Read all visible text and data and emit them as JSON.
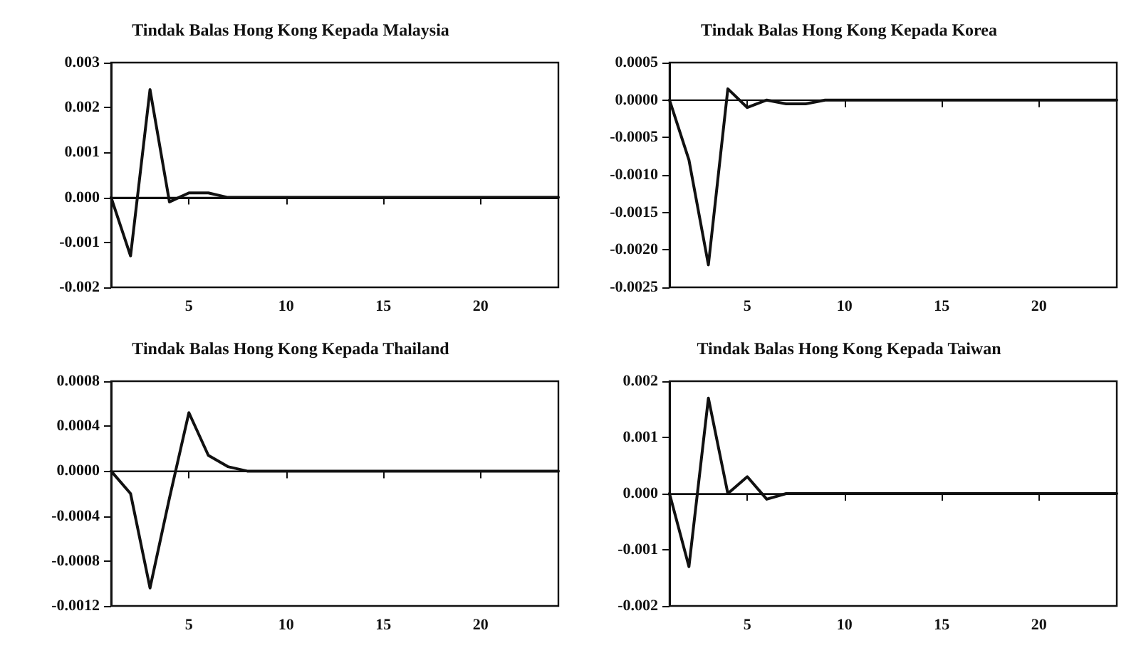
{
  "chart_data": [
    {
      "type": "line",
      "title": "Tindak Balas Hong Kong Kepada Malaysia",
      "x": [
        1,
        2,
        3,
        4,
        5,
        6,
        7,
        8,
        9,
        10,
        11,
        12,
        13,
        14,
        15,
        16,
        17,
        18,
        19,
        20,
        21,
        22,
        23,
        24
      ],
      "series": [
        {
          "color": "#111111",
          "values": [
            0,
            -0.0013,
            0.0024,
            -0.0001,
            0.0001,
            0.0001,
            0,
            0,
            0,
            0,
            0,
            0,
            0,
            0,
            0,
            0,
            0,
            0,
            0,
            0,
            0,
            0,
            0,
            0
          ]
        }
      ],
      "xlim": [
        1,
        24
      ],
      "xticks": [
        5,
        10,
        15,
        20
      ],
      "ylim": [
        -0.002,
        0.003
      ],
      "yticks": [
        {
          "value": -0.002,
          "label": "-0.002"
        },
        {
          "value": -0.001,
          "label": "-0.001"
        },
        {
          "value": 0,
          "label": "0.000"
        },
        {
          "value": 0.001,
          "label": "0.001"
        },
        {
          "value": 0.002,
          "label": "0.002"
        },
        {
          "value": 0.003,
          "label": "0.003"
        }
      ],
      "ref_lines": [
        {
          "axis": "y",
          "value": 0,
          "color": "#111111"
        }
      ],
      "grid": false,
      "marker": "none",
      "line_style": "solid"
    },
    {
      "type": "line",
      "title": "Tindak Balas Hong Kong Kepada Korea",
      "x": [
        1,
        2,
        3,
        4,
        5,
        6,
        7,
        8,
        9,
        10,
        11,
        12,
        13,
        14,
        15,
        16,
        17,
        18,
        19,
        20,
        21,
        22,
        23,
        24
      ],
      "series": [
        {
          "color": "#111111",
          "values": [
            0,
            -0.0008,
            -0.0022,
            0.00015,
            -0.0001,
            0,
            -5e-05,
            -5e-05,
            0,
            0,
            0,
            0,
            0,
            0,
            0,
            0,
            0,
            0,
            0,
            0,
            0,
            0,
            0,
            0
          ]
        }
      ],
      "xlim": [
        1,
        24
      ],
      "xticks": [
        5,
        10,
        15,
        20
      ],
      "ylim": [
        -0.0025,
        0.0005
      ],
      "yticks": [
        {
          "value": -0.0025,
          "label": "-0.0025"
        },
        {
          "value": -0.002,
          "label": "-0.0020"
        },
        {
          "value": -0.0015,
          "label": "-0.0015"
        },
        {
          "value": -0.001,
          "label": "-0.0010"
        },
        {
          "value": -0.0005,
          "label": "-0.0005"
        },
        {
          "value": 0,
          "label": "0.0000"
        },
        {
          "value": 0.0005,
          "label": "0.0005"
        }
      ],
      "ref_lines": [
        {
          "axis": "y",
          "value": 0,
          "color": "#111111"
        }
      ],
      "grid": false,
      "marker": "none",
      "line_style": "solid"
    },
    {
      "type": "line",
      "title": "Tindak Balas Hong Kong Kepada Thailand",
      "x": [
        1,
        2,
        3,
        4,
        5,
        6,
        7,
        8,
        9,
        10,
        11,
        12,
        13,
        14,
        15,
        16,
        17,
        18,
        19,
        20,
        21,
        22,
        23,
        24
      ],
      "series": [
        {
          "color": "#111111",
          "values": [
            0,
            -0.0002,
            -0.00104,
            -0.00024,
            0.00052,
            0.00014,
            4e-05,
            0,
            0,
            0,
            0,
            0,
            0,
            0,
            0,
            0,
            0,
            0,
            0,
            0,
            0,
            0,
            0,
            0
          ]
        }
      ],
      "xlim": [
        1,
        24
      ],
      "xticks": [
        5,
        10,
        15,
        20
      ],
      "ylim": [
        -0.0012,
        0.0008
      ],
      "yticks": [
        {
          "value": -0.0012,
          "label": "-0.0012"
        },
        {
          "value": -0.0008,
          "label": "-0.0008"
        },
        {
          "value": -0.0004,
          "label": "-0.0004"
        },
        {
          "value": 0,
          "label": "0.0000"
        },
        {
          "value": 0.0004,
          "label": "0.0004"
        },
        {
          "value": 0.0008,
          "label": "0.0008"
        }
      ],
      "ref_lines": [
        {
          "axis": "y",
          "value": 0,
          "color": "#111111"
        }
      ],
      "grid": false,
      "marker": "none",
      "line_style": "solid"
    },
    {
      "type": "line",
      "title": "Tindak Balas Hong Kong Kepada Taiwan",
      "x": [
        1,
        2,
        3,
        4,
        5,
        6,
        7,
        8,
        9,
        10,
        11,
        12,
        13,
        14,
        15,
        16,
        17,
        18,
        19,
        20,
        21,
        22,
        23,
        24
      ],
      "series": [
        {
          "color": "#111111",
          "values": [
            0,
            -0.0013,
            0.0017,
            0,
            0.0003,
            -0.0001,
            0,
            0,
            0,
            0,
            0,
            0,
            0,
            0,
            0,
            0,
            0,
            0,
            0,
            0,
            0,
            0,
            0,
            0
          ]
        }
      ],
      "xlim": [
        1,
        24
      ],
      "xticks": [
        5,
        10,
        15,
        20
      ],
      "ylim": [
        -0.002,
        0.002
      ],
      "yticks": [
        {
          "value": -0.002,
          "label": "-0.002"
        },
        {
          "value": -0.001,
          "label": "-0.001"
        },
        {
          "value": 0,
          "label": "0.000"
        },
        {
          "value": 0.001,
          "label": "0.001"
        },
        {
          "value": 0.002,
          "label": "0.002"
        }
      ],
      "ref_lines": [
        {
          "axis": "y",
          "value": 0,
          "color": "#111111"
        }
      ],
      "grid": false,
      "marker": "none",
      "line_style": "solid"
    }
  ]
}
